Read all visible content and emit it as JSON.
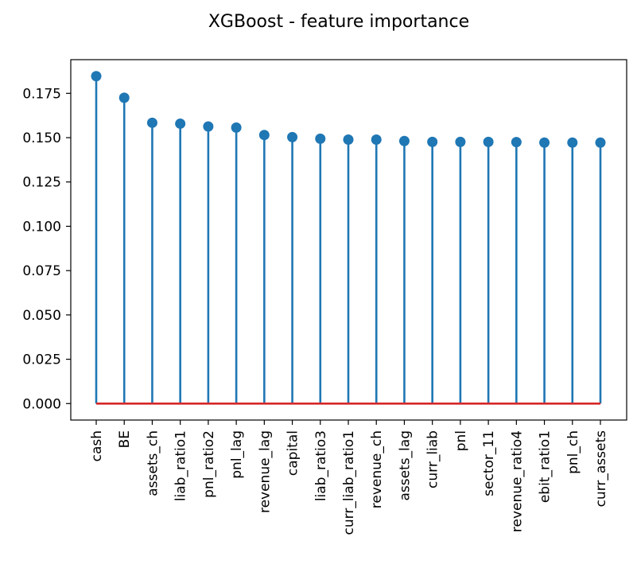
{
  "chart_data": {
    "type": "stem",
    "title": "XGBoost - feature importance",
    "xlabel": "",
    "ylabel": "",
    "categories": [
      "cash",
      "BE",
      "assets_ch",
      "liab_ratio1",
      "pnl_ratio2",
      "pnl_lag",
      "revenue_lag",
      "capital",
      "liab_ratio3",
      "curr_liab_ratio1",
      "revenue_ch",
      "assets_lag",
      "curr_liab",
      "pnl",
      "sector_11",
      "revenue_ratio4",
      "ebit_ratio1",
      "pnl_ch",
      "curr_assets"
    ],
    "values": [
      0.1847,
      0.1725,
      0.1584,
      0.1579,
      0.1563,
      0.1557,
      0.1515,
      0.1503,
      0.1494,
      0.1489,
      0.1489,
      0.1481,
      0.1476,
      0.1476,
      0.1476,
      0.1475,
      0.1472,
      0.1472,
      0.1472
    ],
    "ylim": [
      -0.0093,
      0.194
    ],
    "yticks": [
      "0.000",
      "0.025",
      "0.050",
      "0.075",
      "0.100",
      "0.125",
      "0.150",
      "0.175"
    ],
    "grid": false,
    "colors": {
      "stem": "#1f77b4",
      "marker": "#1f77b4",
      "baseline": "#d62728"
    }
  }
}
